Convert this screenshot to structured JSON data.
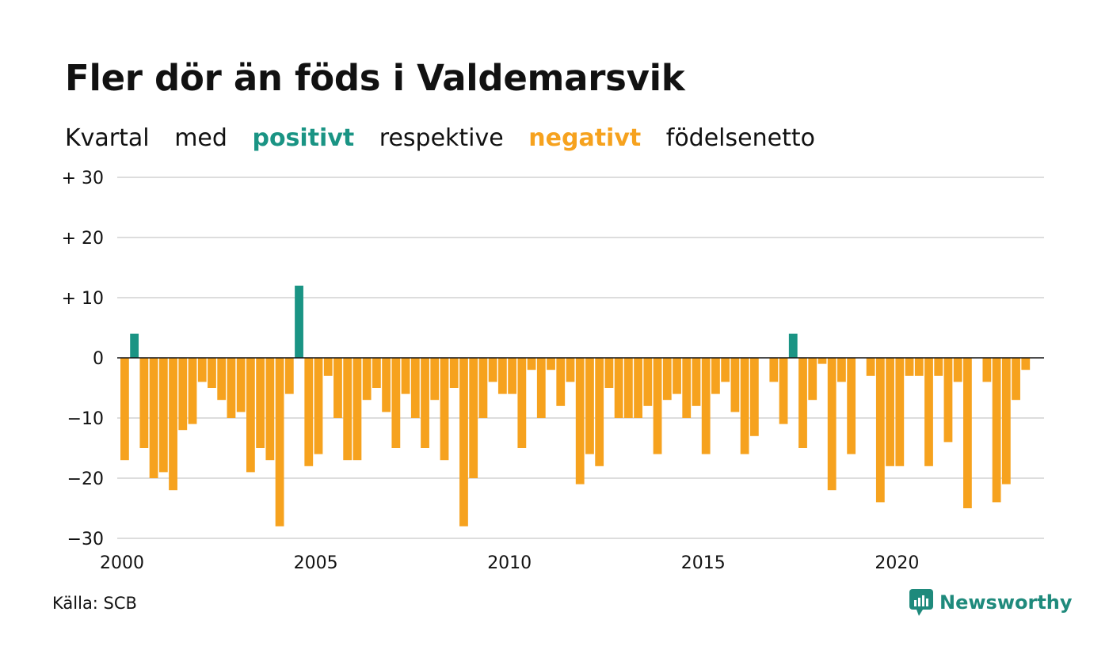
{
  "title": "Fler dör än föds i Valdemarsvik",
  "subtitle": {
    "words": [
      "Kvartal",
      "med",
      "positivt",
      "respektive",
      "negativt",
      "födelsenetto"
    ]
  },
  "source": "Källa: SCB",
  "brand": {
    "name": "Newsworthy",
    "icon": "newsworthy-logo-icon"
  },
  "colors": {
    "positive": "#1a9484",
    "negative": "#f6a21e",
    "grid": "#dddddd",
    "axis": "#111111"
  },
  "chart_data": {
    "type": "bar",
    "title": "Fler dör än föds i Valdemarsvik",
    "x_start": 2000,
    "x_step": 0.25,
    "ylim": [
      -30,
      30
    ],
    "y_ticks": [
      30,
      20,
      10,
      0,
      -10,
      -20,
      -30
    ],
    "y_tick_labels": [
      "+ 30",
      "+ 20",
      "+ 10",
      "0",
      "−10",
      "−20",
      "−30"
    ],
    "x_ticks": [
      2000,
      2005,
      2010,
      2015,
      2020
    ],
    "x_tick_labels": [
      "2000",
      "2005",
      "2010",
      "2015",
      "2020"
    ],
    "grid": true,
    "values": [
      -17,
      4,
      -15,
      -20,
      -19,
      -22,
      -12,
      -11,
      -4,
      -5,
      -7,
      -10,
      -9,
      -19,
      -15,
      -17,
      -28,
      -6,
      12,
      -18,
      -16,
      -3,
      -10,
      -17,
      -17,
      -7,
      -5,
      -9,
      -15,
      -6,
      -10,
      -15,
      -7,
      -17,
      -5,
      -28,
      -20,
      -10,
      -4,
      -6,
      -6,
      -15,
      -2,
      -10,
      -2,
      -8,
      -4,
      -21,
      -16,
      -18,
      -5,
      -10,
      -10,
      -10,
      -8,
      -16,
      -7,
      -6,
      -10,
      -8,
      -16,
      -6,
      -4,
      -9,
      -16,
      -13,
      0,
      -4,
      -11,
      4,
      -15,
      -7,
      -1,
      -22,
      -4,
      -16,
      0,
      -3,
      -24,
      -18,
      -18,
      -3,
      -3,
      -18,
      -3,
      -14,
      -4,
      -25,
      0,
      -4,
      -24,
      -21,
      -7,
      -2
    ]
  }
}
